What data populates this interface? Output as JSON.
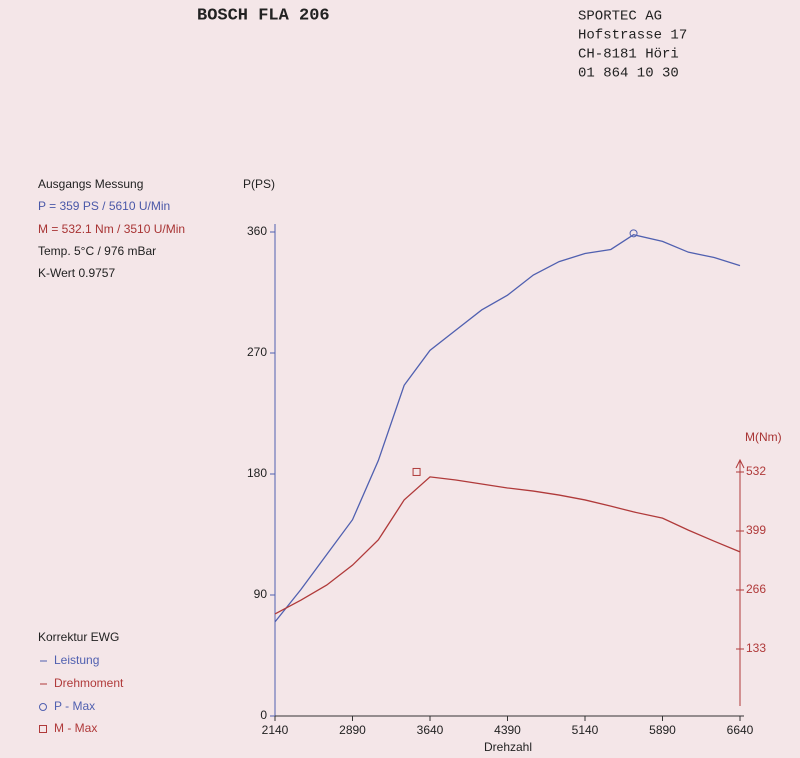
{
  "header": {
    "title": "BOSCH FLA 206",
    "address": [
      "SPORTEC AG",
      "Hofstrasse 17",
      "CH-8181 Höri",
      "01 864 10 30"
    ]
  },
  "info": {
    "title": "Ausgangs Messung",
    "lines": [
      "P = 359 PS / 5610 U/Min",
      "M = 532.1 Nm / 3510 U/Min",
      "Temp. 5°C / 976 mBar",
      "K-Wert 0.9757"
    ]
  },
  "chart_data": {
    "type": "line",
    "y_label": "P(PS)",
    "y2_label": "M(Nm)",
    "x_label": "Drehzahl",
    "legend_title": "Korrektur EWG",
    "xlim": [
      2140,
      6640
    ],
    "xticks": [
      2140,
      2890,
      3640,
      4390,
      5140,
      5890,
      6640
    ],
    "ylim": [
      0,
      360
    ],
    "yticks": [
      0,
      90,
      180,
      270,
      360
    ],
    "y2lim": [
      0,
      532
    ],
    "y2ticks": [
      133,
      266,
      399,
      532
    ],
    "x": [
      2140,
      2390,
      2640,
      2890,
      3140,
      3390,
      3640,
      3890,
      4140,
      4390,
      4640,
      4890,
      5140,
      5390,
      5610,
      5890,
      6140,
      6390,
      6640
    ],
    "series": [
      {
        "name": "Leistung",
        "color": "#5060b0",
        "values": [
          70,
          94,
          120,
          146,
          190,
          246,
          272,
          287,
          302,
          313,
          328,
          338,
          344,
          347,
          358,
          353,
          345,
          341,
          335
        ]
      },
      {
        "name": "Drehmoment",
        "color": "#b03a3a",
        "axis": "y2",
        "values": [
          212,
          243,
          277,
          322,
          379,
          469,
          521,
          514,
          505,
          496,
          489,
          480,
          469,
          455,
          442,
          428,
          401,
          376,
          352
        ]
      }
    ],
    "markers": [
      {
        "name": "P - Max",
        "shape": "circle",
        "color": "#5060b0",
        "x": 5610,
        "value": 359
      },
      {
        "name": "M - Max",
        "shape": "square",
        "color": "#b03a3a",
        "axis": "y2",
        "x": 3510,
        "value": 532.1
      }
    ]
  }
}
